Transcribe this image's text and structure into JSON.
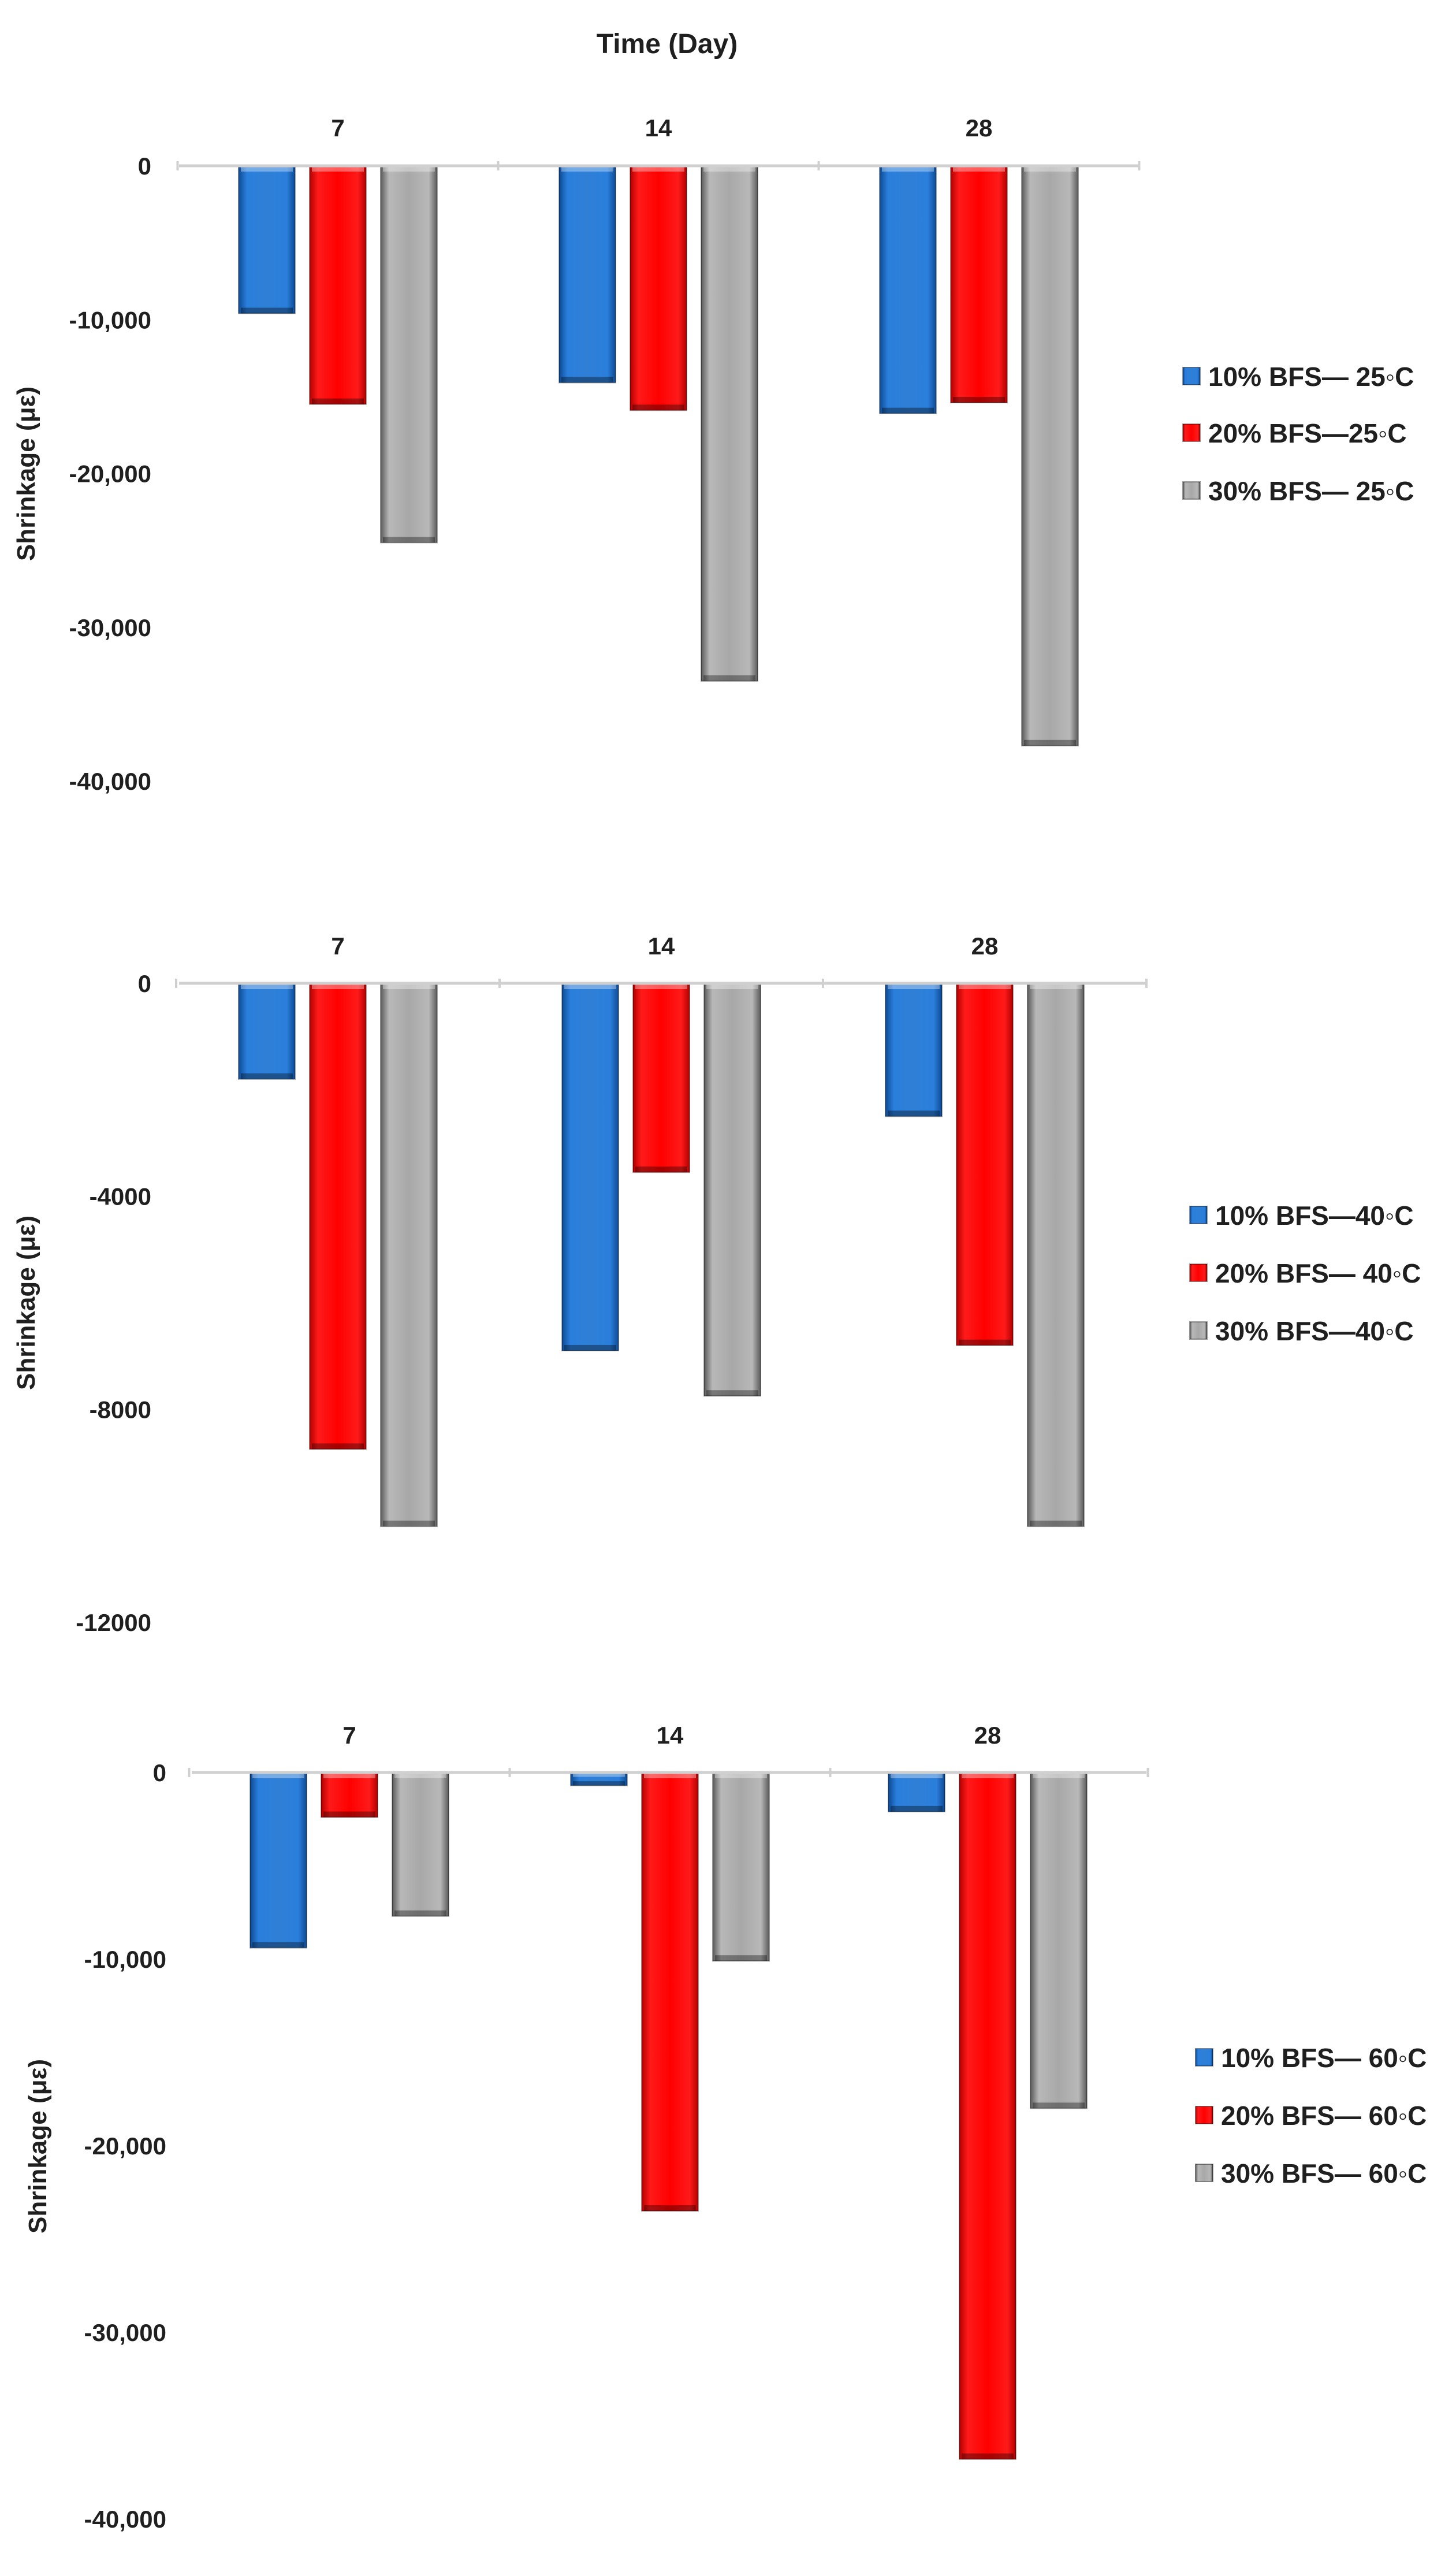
{
  "figure_title": "Time (Day)",
  "colors": {
    "blue": "#1f6fc9",
    "red": "#ff0000",
    "gray": "#a6a6a6"
  },
  "chart_data": [
    {
      "type": "bar",
      "categories": [
        "7",
        "14",
        "28"
      ],
      "ylabel": "Shrinkage (με)",
      "ylim": [
        -40000,
        0
      ],
      "yticks": [
        0,
        -10000,
        -20000,
        -30000,
        -40000
      ],
      "ytick_labels": [
        "0",
        "-10,000",
        "-20,000",
        "-30,000",
        "-40,000"
      ],
      "series": [
        {
          "name": "10% BFS— 25◦C",
          "color": "blue",
          "values": [
            -9600,
            -14100,
            -16100
          ]
        },
        {
          "name": "20% BFS—25◦C",
          "color": "red",
          "values": [
            -15500,
            -15900,
            -15400
          ]
        },
        {
          "name": "30% BFS— 25◦C",
          "color": "gray",
          "values": [
            -24500,
            -33500,
            -37700
          ]
        }
      ]
    },
    {
      "type": "bar",
      "categories": [
        "7",
        "14",
        "28"
      ],
      "ylabel": "Shrinkage (με)",
      "ylim": [
        -12000,
        0
      ],
      "yticks": [
        0,
        -4000,
        -8000,
        -12000
      ],
      "ytick_labels": [
        "0",
        "-4000",
        "-8000",
        "-12000"
      ],
      "series": [
        {
          "name": "10% BFS—40◦C",
          "color": "blue",
          "values": [
            -1800,
            -6900,
            -2500
          ]
        },
        {
          "name": "20% BFS— 40◦C",
          "color": "red",
          "values": [
            -8750,
            -3550,
            -6800
          ]
        },
        {
          "name": "30% BFS—40◦C",
          "color": "gray",
          "values": [
            -10200,
            -7750,
            -10200
          ]
        }
      ]
    },
    {
      "type": "bar",
      "categories": [
        "7",
        "14",
        "28"
      ],
      "ylabel": "Shrinkage (με)",
      "ylim": [
        -40000,
        0
      ],
      "yticks": [
        0,
        -10000,
        -20000,
        -30000,
        -40000
      ],
      "ytick_labels": [
        "0",
        "-10,000",
        "-20,000",
        "-30,000",
        "-40,000"
      ],
      "series": [
        {
          "name": "10% BFS— 60◦C",
          "color": "blue",
          "values": [
            -9400,
            -700,
            -2100
          ]
        },
        {
          "name": "20% BFS— 60◦C",
          "color": "red",
          "values": [
            -2400,
            -23500,
            -36800
          ]
        },
        {
          "name": "30% BFS— 60◦C",
          "color": "gray",
          "values": [
            -7700,
            -10100,
            -18000
          ]
        }
      ]
    }
  ]
}
